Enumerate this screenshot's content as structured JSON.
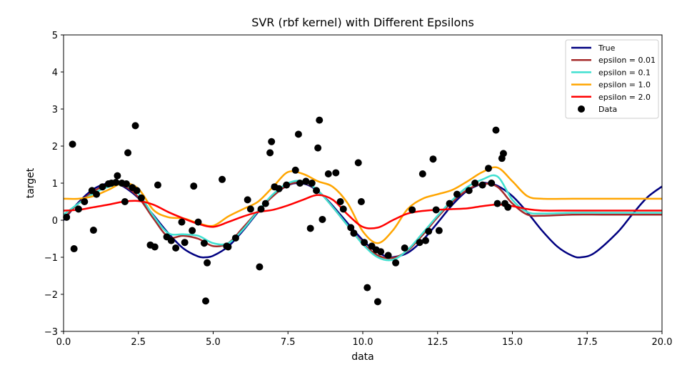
{
  "chart_data": {
    "type": "line",
    "title": "SVR (rbf kernel) with Different Epsilons",
    "xlabel": "data",
    "ylabel": "target",
    "xlim": [
      0,
      20
    ],
    "ylim": [
      -3,
      5
    ],
    "grid": false,
    "legend_position": "top-right",
    "xticks": [
      0,
      2.5,
      5,
      7.5,
      10,
      12.5,
      15,
      17.5,
      20
    ],
    "xtick_labels": [
      "0.0",
      "2.5",
      "5.0",
      "7.5",
      "10.0",
      "12.5",
      "15.0",
      "17.5",
      "20.0"
    ],
    "yticks": [
      -3,
      -2,
      -1,
      0,
      1,
      2,
      3,
      4,
      5
    ],
    "ytick_labels": [
      "−3",
      "−2",
      "−1",
      "0",
      "1",
      "2",
      "3",
      "4",
      "5"
    ],
    "series": [
      {
        "name": "True",
        "color": "#000080",
        "x": [
          0,
          0.5,
          1,
          1.5,
          1.75,
          2,
          2.5,
          3,
          3.5,
          4,
          4.5,
          4.75,
          5,
          5.5,
          6,
          6.5,
          7,
          7.5,
          7.85,
          8.25,
          8.75,
          9.25,
          9.75,
          10.25,
          10.75,
          11,
          11.5,
          12,
          12.5,
          13,
          13.5,
          14,
          14.15,
          14.5,
          15,
          15.5,
          16,
          16.5,
          17,
          17.3,
          17.75,
          18.5,
          19,
          19.5,
          20
        ],
        "y": [
          0,
          0.48,
          0.84,
          1.0,
          0.98,
          0.91,
          0.6,
          0.14,
          -0.35,
          -0.76,
          -0.98,
          -1.0,
          -0.96,
          -0.71,
          -0.28,
          0.22,
          0.66,
          0.94,
          1.0,
          0.92,
          0.6,
          0.15,
          -0.32,
          -0.73,
          -0.97,
          -1.0,
          -0.88,
          -0.54,
          -0.07,
          0.42,
          0.8,
          0.99,
          1.0,
          0.93,
          0.65,
          0.21,
          -0.29,
          -0.71,
          -0.96,
          -1.0,
          -0.88,
          -0.34,
          0.15,
          0.61,
          0.91
        ]
      },
      {
        "name": "epsilon = 0.01",
        "color": "#a52a2a",
        "x": [
          0,
          0.5,
          1,
          1.5,
          2,
          2.5,
          3,
          3.5,
          4,
          4.5,
          5,
          5.5,
          6,
          6.5,
          7,
          7.5,
          8,
          8.5,
          9,
          9.5,
          10,
          10.5,
          11,
          11.5,
          12,
          12.5,
          13,
          13.5,
          14,
          14.5,
          15,
          15.5,
          16,
          17,
          18,
          19,
          20
        ],
        "y": [
          0.05,
          0.45,
          0.78,
          0.95,
          0.93,
          0.62,
          0.05,
          -0.45,
          -0.42,
          -0.5,
          -0.7,
          -0.62,
          -0.2,
          0.25,
          0.65,
          0.95,
          1.02,
          0.8,
          0.35,
          -0.15,
          -0.62,
          -0.95,
          -1.02,
          -0.82,
          -0.4,
          0.08,
          0.5,
          0.82,
          0.98,
          0.9,
          0.45,
          0.15,
          0.12,
          0.15,
          0.15,
          0.15,
          0.15
        ]
      },
      {
        "name": "epsilon = 0.1",
        "color": "#40e0d0",
        "x": [
          0,
          0.5,
          1,
          1.5,
          2,
          2.5,
          3,
          3.5,
          4,
          4.5,
          5,
          5.5,
          6,
          6.5,
          7,
          7.5,
          8,
          8.5,
          9,
          9.5,
          10,
          10.5,
          11,
          11.5,
          12,
          12.5,
          13,
          13.5,
          14,
          14.5,
          15,
          15.5,
          16,
          17,
          18,
          19,
          20
        ],
        "y": [
          0.15,
          0.45,
          0.72,
          0.9,
          0.95,
          0.72,
          0.12,
          -0.35,
          -0.38,
          -0.42,
          -0.62,
          -0.62,
          -0.25,
          0.25,
          0.7,
          1.0,
          1.05,
          0.8,
          0.35,
          -0.15,
          -0.65,
          -1.0,
          -1.07,
          -0.8,
          -0.35,
          0.12,
          0.55,
          0.9,
          1.1,
          1.18,
          0.55,
          0.22,
          0.18,
          0.2,
          0.2,
          0.2,
          0.2
        ]
      },
      {
        "name": "epsilon = 1.0",
        "color": "#ffa500",
        "x": [
          0,
          0.5,
          1,
          1.5,
          2,
          2.5,
          3,
          3.5,
          4,
          4.5,
          5,
          5.5,
          6,
          6.5,
          7,
          7.5,
          8,
          8.5,
          9,
          9.5,
          10,
          10.5,
          11,
          11.5,
          12,
          12.5,
          13,
          13.5,
          14,
          14.5,
          15,
          15.5,
          16,
          17,
          18,
          19,
          20
        ],
        "y": [
          0.58,
          0.58,
          0.65,
          0.82,
          1.0,
          0.85,
          0.28,
          0.08,
          0.05,
          -0.08,
          -0.15,
          0.1,
          0.3,
          0.5,
          0.9,
          1.3,
          1.25,
          1.05,
          0.9,
          0.45,
          -0.3,
          -0.62,
          -0.28,
          0.3,
          0.58,
          0.7,
          0.82,
          1.05,
          1.3,
          1.42,
          1.05,
          0.65,
          0.58,
          0.58,
          0.58,
          0.58,
          0.58
        ]
      },
      {
        "name": "epsilon = 2.0",
        "color": "#ff0000",
        "x": [
          0,
          0.5,
          1,
          1.5,
          2,
          2.5,
          3,
          3.5,
          4,
          4.5,
          5,
          5.5,
          6,
          6.5,
          7,
          7.5,
          8,
          8.5,
          9,
          9.5,
          10,
          10.5,
          11,
          11.5,
          12,
          12.5,
          13,
          13.5,
          14,
          14.5,
          15,
          15.5,
          16,
          17,
          18,
          19,
          20
        ],
        "y": [
          0.26,
          0.28,
          0.35,
          0.42,
          0.5,
          0.52,
          0.42,
          0.22,
          0.05,
          -0.1,
          -0.18,
          -0.05,
          0.1,
          0.22,
          0.28,
          0.4,
          0.55,
          0.68,
          0.55,
          0.15,
          -0.18,
          -0.2,
          0.0,
          0.18,
          0.25,
          0.28,
          0.3,
          0.32,
          0.38,
          0.42,
          0.38,
          0.3,
          0.26,
          0.26,
          0.26,
          0.26,
          0.26
        ]
      }
    ],
    "scatter": {
      "name": "Data",
      "color": "#000000",
      "x": [
        0.1,
        0.3,
        0.35,
        0.5,
        0.7,
        0.95,
        1.0,
        1.1,
        1.3,
        1.5,
        1.6,
        1.75,
        1.8,
        1.95,
        2.05,
        2.1,
        2.15,
        2.3,
        2.4,
        2.45,
        2.6,
        2.9,
        3.05,
        3.15,
        3.45,
        3.6,
        3.75,
        3.95,
        4.05,
        4.3,
        4.35,
        4.5,
        4.7,
        4.75,
        4.8,
        5.3,
        5.45,
        5.5,
        5.75,
        6.15,
        6.25,
        6.55,
        6.6,
        6.75,
        6.9,
        6.95,
        7.05,
        7.2,
        7.45,
        7.75,
        7.85,
        7.9,
        8.1,
        8.25,
        8.3,
        8.45,
        8.5,
        8.55,
        8.65,
        8.85,
        9.1,
        9.25,
        9.35,
        9.6,
        9.7,
        9.85,
        9.95,
        10.05,
        10.15,
        10.3,
        10.45,
        10.5,
        10.6,
        10.85,
        11.1,
        11.4,
        11.65,
        11.9,
        12.0,
        12.1,
        12.2,
        12.35,
        12.45,
        12.55,
        12.9,
        13.15,
        13.55,
        13.75,
        14.0,
        14.2,
        14.3,
        14.45,
        14.5,
        14.65,
        14.7,
        14.75,
        14.85
      ],
      "y": [
        0.08,
        2.05,
        -0.77,
        0.3,
        0.5,
        0.8,
        -0.27,
        0.7,
        0.9,
        0.98,
        1.0,
        1.02,
        1.2,
        1.0,
        0.5,
        0.98,
        1.82,
        0.88,
        2.55,
        0.8,
        0.6,
        -0.67,
        -0.72,
        0.95,
        -0.45,
        -0.55,
        -0.75,
        -0.05,
        -0.6,
        -0.28,
        0.92,
        -0.05,
        -0.62,
        -2.18,
        -1.15,
        1.1,
        -0.7,
        -0.72,
        -0.48,
        0.55,
        0.3,
        -1.26,
        0.3,
        0.45,
        1.82,
        2.12,
        0.9,
        0.85,
        0.95,
        1.35,
        2.32,
        1.0,
        1.05,
        -0.22,
        1.0,
        0.8,
        1.95,
        2.7,
        0.02,
        1.25,
        1.28,
        0.5,
        0.3,
        -0.2,
        -0.35,
        1.55,
        0.5,
        -0.6,
        -1.82,
        -0.7,
        -0.8,
        -2.2,
        -0.85,
        -0.95,
        -1.15,
        -0.75,
        0.28,
        -0.6,
        1.25,
        -0.55,
        -0.3,
        1.65,
        0.28,
        -0.28,
        0.45,
        0.7,
        0.8,
        1.0,
        0.95,
        1.4,
        1.0,
        2.43,
        0.45,
        1.67,
        1.8,
        0.45,
        0.35
      ]
    }
  }
}
